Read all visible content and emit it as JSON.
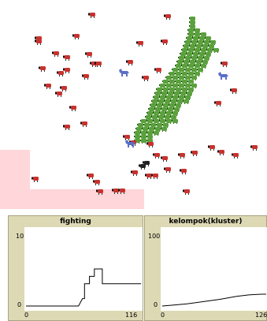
{
  "world": {
    "sheep_icon": "red-sheep-icon",
    "wolf_icon": "blue-wolf-icon",
    "grass_icon": "green-grass-patch-icon",
    "colors": {
      "sheep": "#c8322e",
      "grass": "#5aa03c",
      "wolf": "#5b6fc8",
      "black_sheep": "#222222",
      "pink_region": "#ffd6da"
    }
  },
  "plots": [
    {
      "title": "fighting",
      "y_max_label": "10",
      "y_min_label": "0",
      "x_min_label": "0",
      "x_max_label": "116",
      "chart_data": {
        "type": "line",
        "title": "fighting",
        "xlim": [
          0,
          116
        ],
        "ylim": [
          0,
          10
        ],
        "series": [
          {
            "values": [
              [
                0,
                0
              ],
              [
                53,
                0
              ],
              [
                57,
                1
              ],
              [
                59,
                1
              ],
              [
                59,
                3
              ],
              [
                64,
                3
              ],
              [
                64,
                4
              ],
              [
                69,
                4
              ],
              [
                69,
                5
              ],
              [
                77,
                5
              ],
              [
                77,
                3
              ],
              [
                116,
                3
              ]
            ]
          }
        ]
      }
    },
    {
      "title": "kelompok(kluster)",
      "y_max_label": "100",
      "y_min_label": "0",
      "x_min_label": "0",
      "x_max_label": "126",
      "chart_data": {
        "type": "line",
        "title": "kelompok(kluster)",
        "xlim": [
          0,
          126
        ],
        "ylim": [
          0,
          100
        ],
        "series": [
          {
            "values": [
              [
                0,
                0
              ],
              [
                10,
                1
              ],
              [
                30,
                3
              ],
              [
                50,
                6
              ],
              [
                70,
                9
              ],
              [
                90,
                13
              ],
              [
                105,
                15
              ],
              [
                120,
                16
              ],
              [
                126,
                16
              ]
            ]
          }
        ]
      }
    }
  ]
}
